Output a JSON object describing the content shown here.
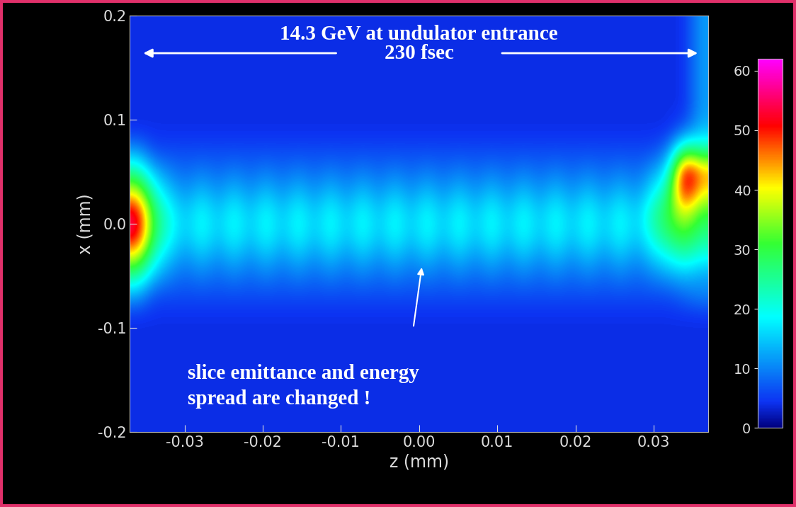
{
  "chart_data": {
    "type": "heatmap",
    "title": "14.3 GeV at undulator entrance",
    "annotations": [
      "230 fsec",
      "slice emittance and energy\nspread are changed !"
    ],
    "x_label": "z (mm)",
    "y_label": "x (mm)",
    "xlim": [
      -0.037,
      0.037
    ],
    "ylim": [
      -0.2,
      0.2
    ],
    "xticks": [
      -0.03,
      -0.02,
      -0.01,
      {
        "value": 0,
        "label": "0.00"
      },
      0.01,
      0.02,
      0.03
    ],
    "yticks": [
      -0.2,
      -0.1,
      {
        "value": 0,
        "label": "0.0"
      },
      0.1,
      0.2
    ],
    "cells": [
      [
        4,
        4,
        4,
        4,
        4,
        4,
        4,
        4,
        4,
        4,
        4,
        4,
        4,
        4,
        4,
        4,
        4,
        4,
        4,
        4,
        4,
        4,
        4,
        4,
        4,
        4,
        4,
        4,
        4,
        4,
        4,
        4,
        4,
        4,
        4,
        4
      ],
      [
        4,
        4,
        4,
        4,
        4,
        4,
        4,
        4,
        4,
        4,
        4,
        4,
        4,
        4,
        4,
        4,
        4,
        4,
        4,
        4,
        4,
        4,
        4,
        4,
        4,
        4,
        4,
        4,
        4,
        4,
        4,
        4,
        4,
        4,
        4,
        4
      ],
      [
        4,
        4,
        4,
        4,
        4,
        4,
        4,
        4,
        4,
        4,
        4,
        4,
        4,
        4,
        4,
        4,
        4,
        4,
        4,
        4,
        4,
        4,
        4,
        4,
        4,
        4,
        4,
        4,
        4,
        4,
        4,
        4,
        4,
        4,
        4,
        4
      ],
      [
        4,
        4,
        4,
        4,
        4,
        4,
        4,
        4,
        4,
        4,
        4,
        4,
        4,
        4,
        4,
        4,
        4,
        4,
        4,
        4,
        4,
        4,
        4,
        4,
        4,
        4,
        4,
        4,
        4,
        4,
        4,
        4,
        4,
        4,
        4,
        4
      ],
      [
        4,
        4,
        4,
        4,
        4,
        4,
        4,
        4,
        4,
        4,
        4,
        4,
        4,
        4,
        4,
        4,
        4,
        4,
        4,
        4,
        4,
        4,
        4,
        4,
        4,
        4,
        4,
        4,
        4,
        4,
        4,
        4,
        4,
        4,
        4,
        4
      ],
      [
        4,
        4,
        4,
        4,
        4,
        4,
        4,
        4,
        4,
        4,
        4,
        4,
        4,
        4,
        4,
        4,
        4,
        4,
        4,
        4,
        4,
        4,
        4,
        4,
        4,
        4,
        4,
        4,
        4,
        4,
        4,
        4,
        4,
        4,
        4,
        4
      ],
      [
        12,
        6,
        6,
        6,
        6,
        6,
        6,
        6,
        6,
        6,
        6,
        6,
        6,
        6,
        6,
        6,
        6,
        6,
        6,
        6,
        6,
        6,
        6,
        6,
        6,
        6,
        6,
        6,
        6,
        6,
        6,
        6,
        6,
        6,
        8,
        10
      ],
      [
        25,
        14,
        10,
        8,
        10,
        8,
        10,
        8,
        10,
        8,
        10,
        8,
        10,
        8,
        10,
        8,
        10,
        8,
        10,
        8,
        10,
        8,
        10,
        8,
        10,
        8,
        10,
        8,
        10,
        8,
        10,
        8,
        10,
        12,
        14,
        12
      ],
      [
        40,
        22,
        15,
        11,
        15,
        11,
        15,
        11,
        15,
        11,
        15,
        11,
        15,
        11,
        15,
        11,
        15,
        11,
        15,
        11,
        15,
        11,
        15,
        11,
        15,
        11,
        15,
        11,
        15,
        11,
        15,
        11,
        16,
        20,
        24,
        20
      ],
      [
        55,
        28,
        20,
        14,
        20,
        14,
        20,
        14,
        20,
        14,
        20,
        14,
        20,
        14,
        20,
        14,
        20,
        14,
        20,
        14,
        20,
        14,
        20,
        14,
        20,
        14,
        20,
        14,
        20,
        14,
        20,
        14,
        22,
        28,
        32,
        26
      ],
      [
        55,
        28,
        20,
        14,
        20,
        14,
        20,
        14,
        20,
        14,
        20,
        14,
        20,
        14,
        20,
        14,
        20,
        14,
        20,
        14,
        20,
        14,
        20,
        14,
        20,
        14,
        20,
        14,
        20,
        14,
        20,
        14,
        24,
        30,
        40,
        30
      ],
      [
        40,
        22,
        15,
        11,
        15,
        11,
        15,
        11,
        15,
        11,
        15,
        11,
        15,
        11,
        15,
        11,
        15,
        11,
        15,
        11,
        15,
        11,
        15,
        11,
        15,
        11,
        15,
        11,
        15,
        11,
        15,
        11,
        18,
        26,
        55,
        40
      ],
      [
        25,
        14,
        10,
        8,
        10,
        8,
        10,
        8,
        10,
        8,
        10,
        8,
        10,
        8,
        10,
        8,
        10,
        8,
        10,
        8,
        10,
        8,
        10,
        8,
        10,
        8,
        10,
        8,
        10,
        8,
        10,
        8,
        12,
        18,
        58,
        45
      ],
      [
        12,
        6,
        6,
        6,
        6,
        6,
        6,
        6,
        6,
        6,
        6,
        6,
        6,
        6,
        6,
        6,
        6,
        6,
        6,
        6,
        6,
        6,
        6,
        6,
        6,
        6,
        6,
        6,
        6,
        6,
        6,
        6,
        6,
        10,
        30,
        25
      ],
      [
        4,
        4,
        4,
        4,
        4,
        4,
        4,
        4,
        4,
        4,
        4,
        4,
        4,
        4,
        4,
        4,
        4,
        4,
        4,
        4,
        4,
        4,
        4,
        4,
        4,
        4,
        4,
        4,
        4,
        4,
        4,
        4,
        4,
        4,
        8,
        14
      ],
      [
        4,
        4,
        4,
        4,
        4,
        4,
        4,
        4,
        4,
        4,
        4,
        4,
        4,
        4,
        4,
        4,
        4,
        4,
        4,
        4,
        4,
        4,
        4,
        4,
        4,
        4,
        4,
        4,
        4,
        4,
        4,
        4,
        4,
        4,
        4,
        12
      ],
      [
        4,
        4,
        4,
        4,
        4,
        4,
        4,
        4,
        4,
        4,
        4,
        4,
        4,
        4,
        4,
        4,
        4,
        4,
        4,
        4,
        4,
        4,
        4,
        4,
        4,
        4,
        4,
        4,
        4,
        4,
        4,
        4,
        4,
        4,
        4,
        12
      ],
      [
        4,
        4,
        4,
        4,
        4,
        4,
        4,
        4,
        4,
        4,
        4,
        4,
        4,
        4,
        4,
        4,
        4,
        4,
        4,
        4,
        4,
        4,
        4,
        4,
        4,
        4,
        4,
        4,
        4,
        4,
        4,
        4,
        4,
        4,
        4,
        12
      ],
      [
        4,
        4,
        4,
        4,
        4,
        4,
        4,
        4,
        4,
        4,
        4,
        4,
        4,
        4,
        4,
        4,
        4,
        4,
        4,
        4,
        4,
        4,
        4,
        4,
        4,
        4,
        4,
        4,
        4,
        4,
        4,
        4,
        4,
        4,
        4,
        12
      ],
      [
        4,
        4,
        4,
        4,
        4,
        4,
        4,
        4,
        4,
        4,
        4,
        4,
        4,
        4,
        4,
        4,
        4,
        4,
        4,
        4,
        4,
        4,
        4,
        4,
        4,
        4,
        4,
        4,
        4,
        4,
        4,
        4,
        4,
        4,
        4,
        12
      ]
    ],
    "colorbar_range": [
      0,
      62
    ],
    "colorbar_ticks": [
      0,
      10,
      20,
      30,
      40,
      50,
      60
    ]
  }
}
